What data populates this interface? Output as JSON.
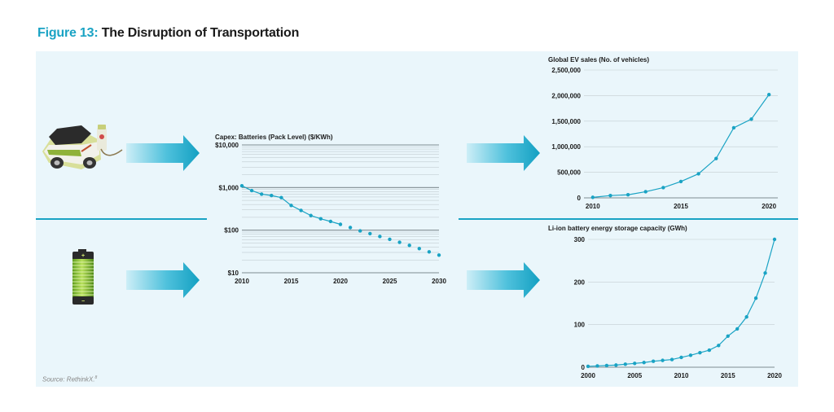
{
  "figure": {
    "label": "Figure 13:",
    "title": "The Disruption of Transportation"
  },
  "source": "Source: RethinkX.",
  "source_footnote": "8",
  "colors": {
    "accent": "#1aa3c4",
    "panel_bg": "#eaf6fb",
    "line": "#1aa3c4",
    "battery": "#8cc63f"
  },
  "chart_data": [
    {
      "id": "battery-cost",
      "type": "line",
      "scale": "log",
      "title": "Capex: Batteries (Pack Level) ($/KWh)",
      "x": [
        2010,
        2011,
        2012,
        2013,
        2014,
        2015,
        2016,
        2017,
        2018,
        2019,
        2020
      ],
      "values": [
        1100,
        850,
        700,
        650,
        580,
        380,
        290,
        220,
        185,
        160,
        137
      ],
      "forecast_x": [
        2021,
        2022,
        2023,
        2024,
        2025,
        2026,
        2027,
        2028,
        2029,
        2030
      ],
      "forecast_values": [
        115,
        96,
        83,
        71,
        61,
        52,
        44,
        37,
        31,
        26
      ],
      "xlim": [
        2010,
        2030
      ],
      "ylim": [
        10,
        10000
      ],
      "xticks": [
        2010,
        2015,
        2020,
        2025,
        2030
      ],
      "xtick_labels": [
        "2010",
        "2015",
        "2020",
        "2025",
        "2030"
      ],
      "yticks": [
        10,
        100,
        1000,
        10000
      ],
      "ytick_labels": [
        "$10",
        "$100",
        "$1,000",
        "$10,000"
      ]
    },
    {
      "id": "ev-sales",
      "type": "line",
      "title": "Global EV sales (No. of vehicles)",
      "x": [
        2010,
        2011,
        2012,
        2013,
        2014,
        2015,
        2016,
        2017,
        2018,
        2019,
        2020
      ],
      "values": [
        10000,
        45000,
        60000,
        120000,
        200000,
        320000,
        470000,
        770000,
        1370000,
        1540000,
        2020000
      ],
      "xlim": [
        2009.5,
        2020.5
      ],
      "ylim": [
        0,
        2500000
      ],
      "xticks": [
        2010,
        2015,
        2020
      ],
      "xtick_labels": [
        "2010",
        "2015",
        "2020"
      ],
      "yticks": [
        0,
        500000,
        1000000,
        1500000,
        2000000,
        2500000
      ],
      "ytick_labels": [
        "0",
        "500,000",
        "1,000,000",
        "1,500,000",
        "2,000,000",
        "2,500,000"
      ]
    },
    {
      "id": "li-ion-storage",
      "type": "line",
      "title": "Li-ion battery energy storage capacity (GWh)",
      "x": [
        2000,
        2001,
        2002,
        2003,
        2004,
        2005,
        2006,
        2007,
        2008,
        2009,
        2010,
        2011,
        2012,
        2013,
        2014,
        2015,
        2016,
        2017,
        2018,
        2019,
        2020
      ],
      "values": [
        2,
        3,
        4,
        5,
        7,
        9,
        11,
        14,
        16,
        18,
        23,
        28,
        34,
        40,
        51,
        73,
        90,
        118,
        162,
        221,
        300
      ],
      "xlim": [
        2000,
        2020
      ],
      "ylim": [
        0,
        300
      ],
      "xticks": [
        2000,
        2005,
        2010,
        2015,
        2020
      ],
      "xtick_labels": [
        "2000",
        "2005",
        "2010",
        "2015",
        "2020"
      ],
      "yticks": [
        0,
        100,
        200,
        300
      ],
      "ytick_labels": [
        "0",
        "100",
        "200",
        "300"
      ]
    }
  ]
}
